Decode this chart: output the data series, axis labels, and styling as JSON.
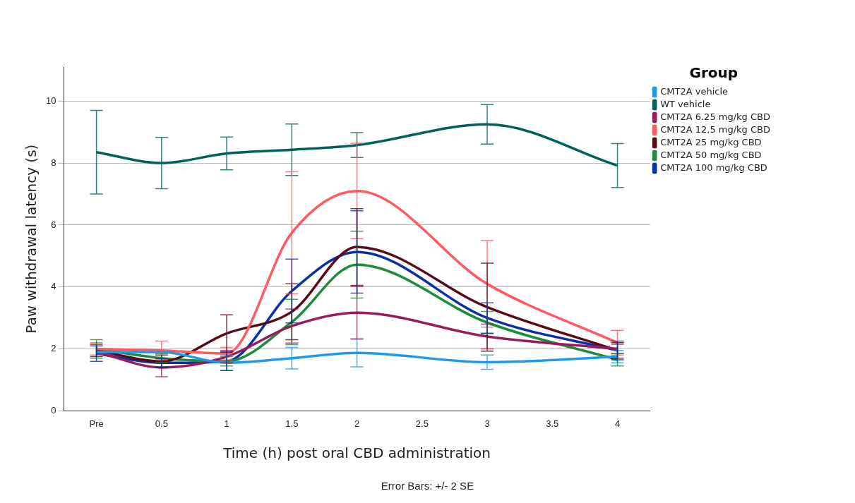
{
  "chart_data": {
    "type": "line",
    "xlabel": "Time (h) post oral CBD administration",
    "ylabel": "Paw withdrawal latency (s)",
    "legend_title": "Group",
    "legend": "right",
    "grid": "y",
    "marker": "none",
    "line_style": "solid",
    "categories": [
      "Pre",
      "0.5",
      "1",
      "1.5",
      "2",
      "2.5",
      "3",
      "3.5",
      "4"
    ],
    "ylim": [
      0,
      11.1
    ],
    "yticks": [
      0,
      2,
      4,
      6,
      8,
      10
    ],
    "annotations": [
      "Error Bars: +/- 2 SE"
    ],
    "series": [
      {
        "name": "CMT2A vehicle",
        "color": "#1e9be8",
        "values": [
          1.9,
          1.9,
          1.55,
          1.7,
          1.87,
          null,
          1.57,
          null,
          1.75
        ],
        "errors": [
          null,
          null,
          0.25,
          0.35,
          0.45,
          null,
          0.23,
          null,
          0.2
        ]
      },
      {
        "name": "WT vehicle",
        "color": "#00605c",
        "values": [
          8.35,
          8.0,
          8.31,
          8.43,
          8.58,
          null,
          9.25,
          null,
          7.92
        ],
        "errors": [
          1.35,
          0.83,
          0.53,
          0.83,
          0.4,
          null,
          0.64,
          null,
          0.71
        ]
      },
      {
        "name": "CMT2A 6.25 mg/kg CBD",
        "color": "#9a1b5a",
        "values": [
          1.9,
          1.4,
          1.75,
          2.74,
          3.17,
          null,
          2.4,
          null,
          2.0
        ],
        "errors": [
          null,
          0.3,
          0.2,
          0.55,
          0.85,
          null,
          0.4,
          null,
          0.15
        ]
      },
      {
        "name": "CMT2A 12.5 mg/kg CBD",
        "color": "#ff5a5f",
        "values": [
          2.0,
          1.95,
          1.85,
          5.75,
          7.1,
          null,
          4.1,
          null,
          2.2
        ],
        "errors": [
          0.2,
          0.3,
          0.2,
          1.97,
          1.54,
          null,
          1.4,
          null,
          0.4
        ]
      },
      {
        "name": "CMT2A 25 mg/kg CBD",
        "color": "#5a0a14",
        "values": [
          1.95,
          1.6,
          2.5,
          3.2,
          5.29,
          null,
          3.35,
          null,
          1.95
        ],
        "errors": [
          0.2,
          0.2,
          0.6,
          0.9,
          1.24,
          null,
          1.42,
          null,
          0.25
        ]
      },
      {
        "name": "CMT2A 50 mg/kg CBD",
        "color": "#1e8a3c",
        "values": [
          2.0,
          1.7,
          1.6,
          2.87,
          4.72,
          null,
          2.85,
          null,
          1.65
        ],
        "errors": [
          0.3,
          0.15,
          0.15,
          0.73,
          1.08,
          null,
          0.36,
          null,
          0.2
        ]
      },
      {
        "name": "CMT2A 100 mg/kg CBD",
        "color": "#0a30a8",
        "values": [
          1.85,
          1.55,
          1.6,
          3.87,
          5.13,
          null,
          3.0,
          null,
          1.95
        ],
        "errors": [
          0.25,
          0.15,
          0.3,
          1.03,
          1.33,
          null,
          0.49,
          null,
          0.3
        ]
      }
    ]
  }
}
